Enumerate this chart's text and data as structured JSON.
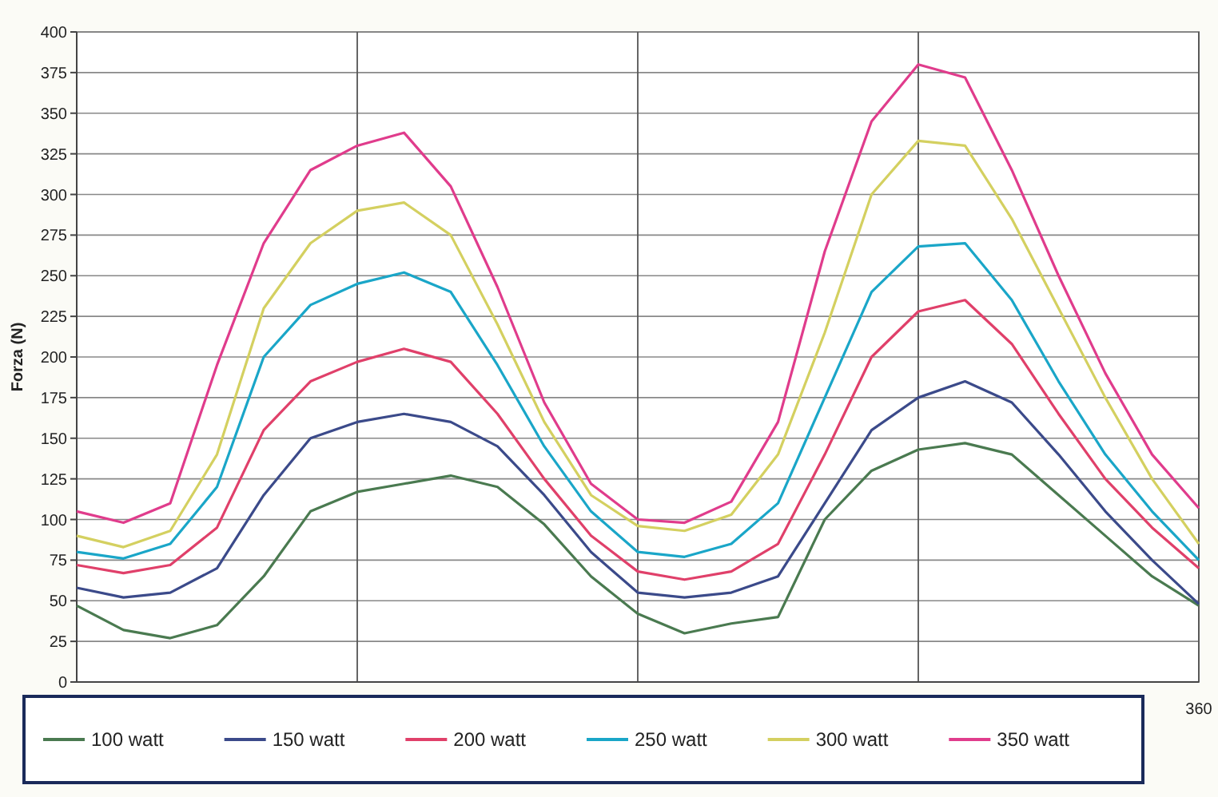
{
  "chart_data": {
    "type": "line",
    "ylabel": "Forza (N)",
    "categories": [
      null,
      null,
      null,
      null,
      null,
      null,
      null,
      null,
      null,
      null,
      null,
      null,
      null,
      null,
      null,
      null,
      null,
      null,
      null,
      null,
      null,
      null,
      null,
      null,
      null
    ],
    "annotations": [
      "360"
    ],
    "ylim": [
      0,
      400
    ],
    "yticks": [
      0,
      25,
      50,
      75,
      100,
      125,
      150,
      175,
      200,
      225,
      250,
      275,
      300,
      325,
      350,
      375,
      400
    ],
    "grid": true,
    "legend": "bottom",
    "marker": "none",
    "line_style": "solid",
    "series": [
      {
        "name": "100 watt",
        "color": "#4a7a50",
        "values": [
          47,
          32,
          27,
          35,
          65,
          105,
          117,
          122,
          127,
          120,
          97,
          65,
          42,
          30,
          36,
          40,
          100,
          130,
          143,
          147,
          140,
          115,
          90,
          65,
          47
        ]
      },
      {
        "name": "150 watt",
        "color": "#3b4a8a",
        "values": [
          58,
          52,
          55,
          70,
          115,
          150,
          160,
          165,
          160,
          145,
          115,
          80,
          55,
          52,
          55,
          65,
          110,
          155,
          175,
          185,
          172,
          140,
          105,
          75,
          48
        ]
      },
      {
        "name": "200 watt",
        "color": "#e0406a",
        "values": [
          72,
          67,
          72,
          95,
          155,
          185,
          197,
          205,
          197,
          165,
          125,
          90,
          68,
          63,
          68,
          85,
          140,
          200,
          228,
          235,
          208,
          165,
          125,
          95,
          70
        ]
      },
      {
        "name": "250 watt",
        "color": "#1aa6c8",
        "values": [
          80,
          76,
          85,
          120,
          200,
          232,
          245,
          252,
          240,
          195,
          145,
          105,
          80,
          77,
          85,
          110,
          175,
          240,
          268,
          270,
          235,
          185,
          140,
          105,
          75
        ]
      },
      {
        "name": "300 watt",
        "color": "#d4d060",
        "values": [
          90,
          83,
          93,
          140,
          230,
          270,
          290,
          295,
          275,
          220,
          160,
          115,
          96,
          93,
          103,
          140,
          215,
          300,
          333,
          330,
          285,
          230,
          175,
          125,
          85
        ]
      },
      {
        "name": "350 watt",
        "color": "#e03c8c",
        "values": [
          105,
          98,
          110,
          195,
          270,
          315,
          330,
          338,
          305,
          243,
          172,
          122,
          100,
          98,
          111,
          160,
          265,
          345,
          380,
          372,
          315,
          250,
          190,
          140,
          107
        ]
      }
    ]
  }
}
